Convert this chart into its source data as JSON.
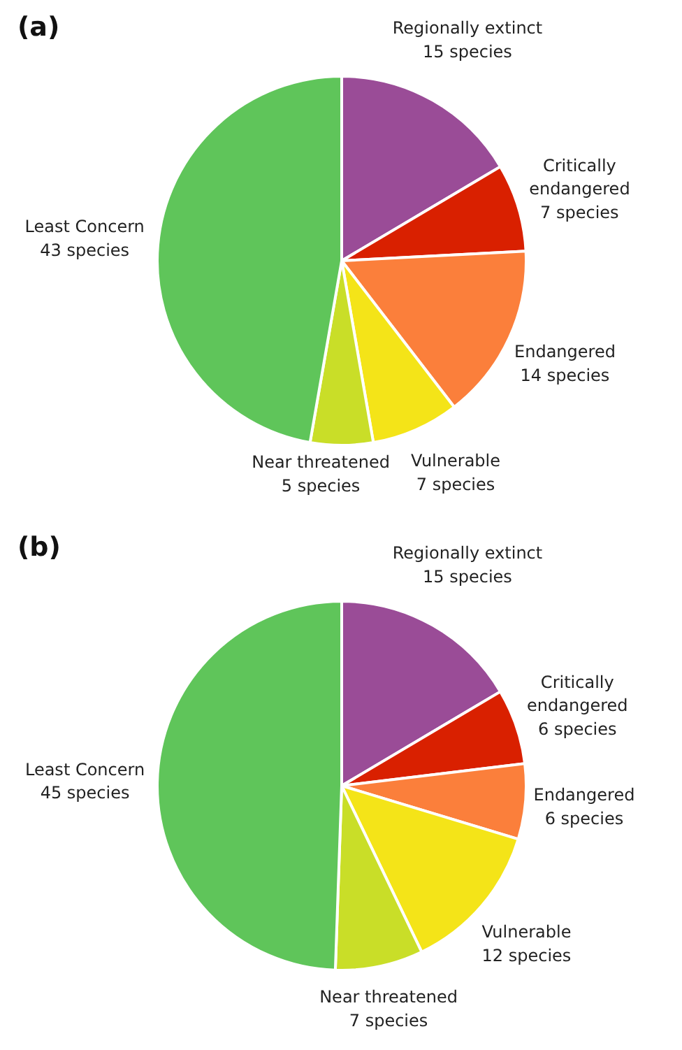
{
  "chart_data": [
    {
      "type": "pie",
      "title": "(a)",
      "categories": [
        "Regionally extinct",
        "Critically endangered",
        "Endangered",
        "Vulnerable",
        "Near threatened",
        "Least Concern"
      ],
      "values": [
        15,
        7,
        14,
        7,
        5,
        43
      ],
      "value_labels": [
        "15 species",
        "7 species",
        "14 species",
        "7 species",
        "5 species",
        "43 species"
      ],
      "colors": [
        "#9a4c97",
        "#d92000",
        "#fb7f3b",
        "#f4e418",
        "#c9de28",
        "#5fc55a"
      ]
    },
    {
      "type": "pie",
      "title": "(b)",
      "categories": [
        "Regionally extinct",
        "Critically endangered",
        "Endangered",
        "Vulnerable",
        "Near threatened",
        "Least Concern"
      ],
      "values": [
        15,
        6,
        6,
        12,
        7,
        45
      ],
      "value_labels": [
        "15 species",
        "6 species",
        "6 species",
        "12 species",
        "7 species",
        "45 species"
      ],
      "colors": [
        "#9a4c97",
        "#d92000",
        "#fb7f3b",
        "#f4e418",
        "#c9de28",
        "#5fc55a"
      ]
    }
  ]
}
